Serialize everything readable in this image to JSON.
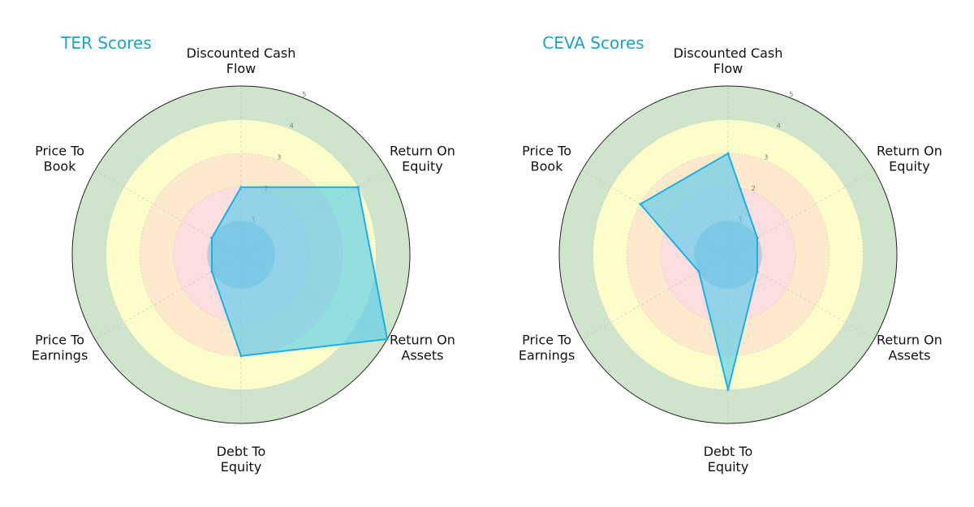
{
  "chart_data": [
    {
      "type": "radar",
      "title": "TER Scores",
      "axes": [
        [
          "Discounted Cash",
          "Flow"
        ],
        [
          "Return On",
          "Equity"
        ],
        [
          "Return On",
          "Assets"
        ],
        [
          "Debt To",
          "Equity"
        ],
        [
          "Price To",
          "Earnings"
        ],
        [
          "Price To",
          "Book"
        ]
      ],
      "rlim": [
        0,
        5
      ],
      "rticks": [
        "1",
        "2",
        "3",
        "4",
        "5"
      ],
      "values": [
        2,
        4,
        5,
        3,
        1,
        1
      ]
    },
    {
      "type": "radar",
      "title": "CEVA Scores",
      "axes": [
        [
          "Discounted Cash",
          "Flow"
        ],
        [
          "Return On",
          "Equity"
        ],
        [
          "Return On",
          "Assets"
        ],
        [
          "Debt To",
          "Equity"
        ],
        [
          "Price To",
          "Earnings"
        ],
        [
          "Price To",
          "Book"
        ]
      ],
      "rlim": [
        0,
        5
      ],
      "rticks": [
        "1",
        "2",
        "3",
        "4",
        "5"
      ],
      "values": [
        3,
        1,
        1,
        4,
        1,
        3
      ]
    }
  ],
  "style": {
    "title_color": "#1aa3cc",
    "series_fill": "#4cc9ee",
    "series_stroke": "#1ab0e6",
    "bands": [
      "#7ab8a0",
      "#a9d3cf",
      "#fff7c2",
      "#fde3c7",
      "#fbd8d8"
    ],
    "band_fill": [
      "#cfe5cb",
      "#fdfdc9",
      "#fde9cc",
      "#fcdede"
    ],
    "center_fill": "#93b8cf"
  }
}
